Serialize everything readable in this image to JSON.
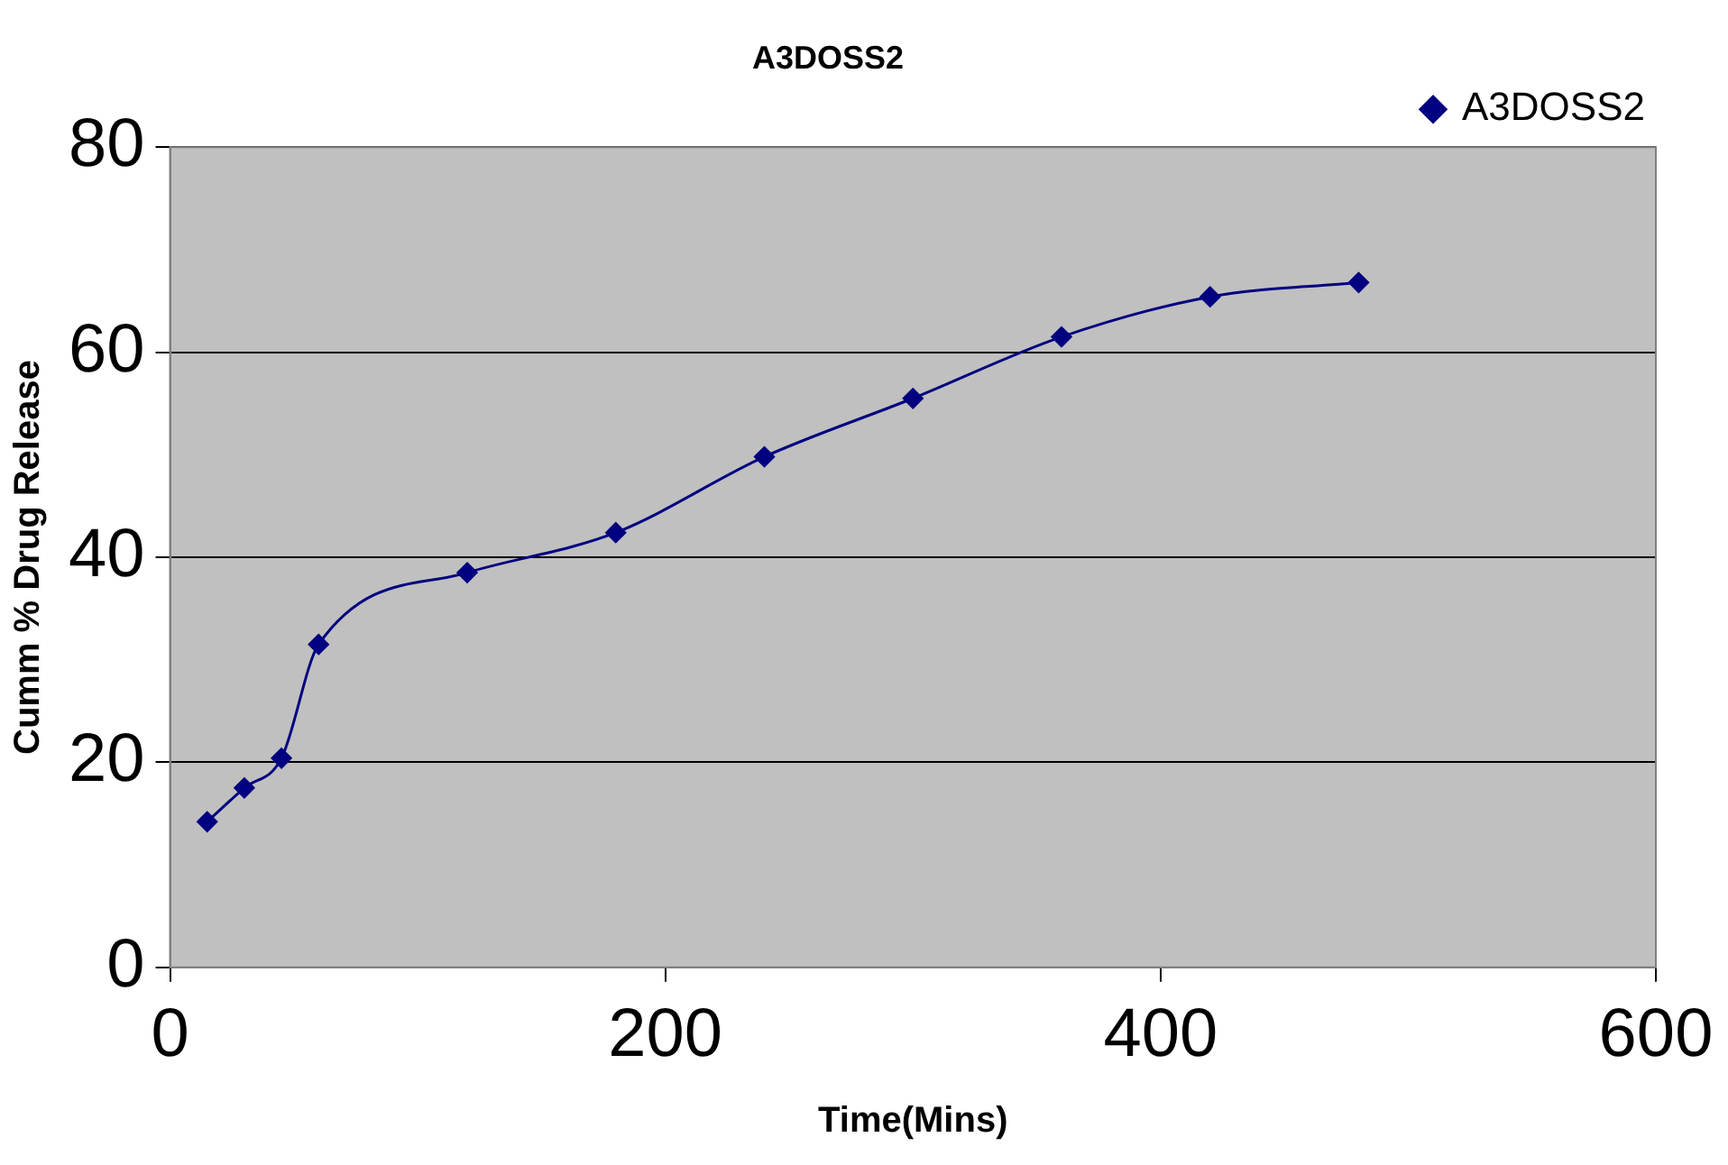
{
  "chart_data": {
    "type": "line",
    "title": "A3DOSS2",
    "xlabel": "Time(Mins)",
    "ylabel": "Cumm % Drug Release",
    "x": [
      15,
      30,
      45,
      60,
      120,
      180,
      240,
      300,
      360,
      420,
      480
    ],
    "series": [
      {
        "name": "A3DOSS2",
        "color": "#000080",
        "values": [
          14.2,
          17.5,
          20.4,
          31.5,
          38.5,
          42.4,
          49.8,
          55.5,
          61.5,
          65.4,
          66.8
        ]
      }
    ],
    "xlim": [
      0,
      600
    ],
    "xticks": [
      0,
      200,
      400,
      600
    ],
    "ylim": [
      0,
      80
    ],
    "yticks": [
      0,
      20,
      40,
      60,
      80
    ],
    "grid": "y",
    "legend": "top right",
    "marker": "diamond",
    "line_style": "solid"
  }
}
